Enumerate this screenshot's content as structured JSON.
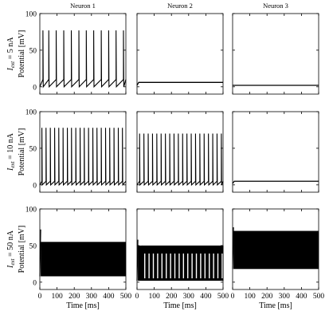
{
  "chart_data": {
    "type": "line",
    "column_titles": [
      "Neuron 1",
      "Neuron 2",
      "Neuron 3"
    ],
    "x_unit_label": "Time [ms]",
    "x_ticks": [
      "0",
      "100",
      "200",
      "300",
      "400",
      "500"
    ],
    "xlim": [
      0,
      500
    ],
    "y_axis_label": "Potential [mV]",
    "y_ticks": [
      "0",
      "50",
      "100"
    ],
    "ylim": [
      -10,
      100
    ],
    "rows": [
      {
        "condition_label": "= 5 nA",
        "panels": [
          {
            "kind": "spiking",
            "title": "Neuron 1",
            "baseline": 2,
            "reset": 0,
            "threshold": 10,
            "peak": 77,
            "spike_times": [
              18,
              52,
              95,
              139,
              183,
              227,
              270,
              313,
              357,
              400,
              443,
              486
            ]
          },
          {
            "kind": "step",
            "title": "Neuron 2",
            "rest": 2,
            "steady": 6,
            "rise_ms": 10
          },
          {
            "kind": "step",
            "title": "Neuron 3",
            "rest": 2,
            "steady": 2,
            "rise_ms": 5
          }
        ]
      },
      {
        "condition_label": "= 10 nA",
        "panels": [
          {
            "kind": "spiking",
            "title": "Neuron 1",
            "baseline": 2,
            "reset": 0,
            "threshold": 5,
            "peak": 78,
            "spike_times": [
              12,
              36,
              61,
              86,
              110,
              135,
              160,
              184,
              209,
              234,
              258,
              283,
              308,
              332,
              357,
              382,
              406,
              431,
              456,
              480
            ]
          },
          {
            "kind": "spiking",
            "title": "Neuron 2",
            "baseline": 2,
            "reset": 0,
            "threshold": 5,
            "peak": 70,
            "spike_times": [
              15,
              40,
              65,
              90,
              115,
              140,
              165,
              190,
              215,
              240,
              265,
              290,
              315,
              340,
              365,
              390,
              415,
              440,
              465,
              490
            ]
          },
          {
            "kind": "step",
            "title": "Neuron 3",
            "rest": 2,
            "steady": 5,
            "rise_ms": 10
          }
        ]
      },
      {
        "condition_label": "= 50 nA",
        "panels": [
          {
            "kind": "band",
            "title": "Neuron 1",
            "low": 8,
            "high": 55,
            "start": 5,
            "initial_peak": 72,
            "dense_until": 500,
            "comb_from": 500,
            "comb_period": 10
          },
          {
            "kind": "band",
            "title": "Neuron 2",
            "low": 2,
            "high": 50,
            "start": 5,
            "initial_peak": 58,
            "dense_until": 30,
            "comb_from": 30,
            "comb_period": 25
          },
          {
            "kind": "band",
            "title": "Neuron 3",
            "low": 18,
            "high": 70,
            "start": 5,
            "initial_peak": 75,
            "dense_until": 500,
            "comb_from": 500,
            "comb_period": 10
          }
        ]
      }
    ]
  }
}
